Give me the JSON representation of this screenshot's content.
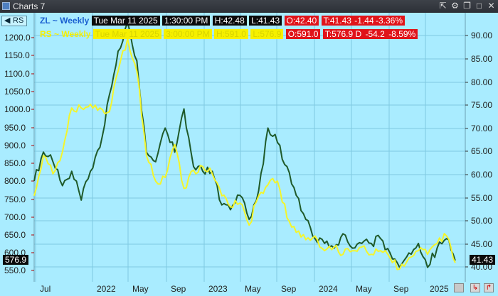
{
  "window": {
    "title": "Charts 7",
    "icons": [
      "export-icon",
      "gear-icon",
      "restore-icon",
      "maximize-icon",
      "close-icon"
    ]
  },
  "toolbar": {
    "instrument_button": "RS"
  },
  "legend": {
    "zl": {
      "symbol": "ZL ~ Weekly",
      "date": "Tue Mar 11 2025",
      "time": "1:30:00 PM",
      "high": "H:42.48",
      "low": "L:41.43",
      "open": "O:42.40",
      "last": "T:41.43",
      "change": "-1.44",
      "pct": "-3.36%"
    },
    "rs": {
      "symbol": "RS ~ Weekly",
      "date": "Tue Mar 11 2025",
      "time": "3:00:00 PM",
      "high": "H:591.0",
      "low": "L:576.9",
      "open": "O:591.0",
      "last": "T:576.9 D",
      "change": "-54.2",
      "pct": "-8.59%"
    }
  },
  "left_axis_ticks": [
    "1200.0",
    "1150.0",
    "1100.0",
    "1050.0",
    "1000.0",
    "950.0",
    "900.0",
    "850.0",
    "800.0",
    "750.0",
    "700.0",
    "650.0",
    "600.0",
    "550.0"
  ],
  "right_axis_ticks": [
    "90.00",
    "85.00",
    "80.00",
    "75.00",
    "70.00",
    "65.00",
    "60.00",
    "55.00",
    "50.00",
    "45.00",
    "40.00"
  ],
  "x_axis_ticks": [
    "Jul",
    "2022",
    "May",
    "Sep",
    "2023",
    "May",
    "Sep",
    "2024",
    "May",
    "Sep",
    "2025"
  ],
  "price_labels": {
    "left": "576.9",
    "right": "41.43"
  },
  "colors": {
    "background": "#a9ecff",
    "zl_line": "#1f5a2a",
    "rs_line": "#f4f52a",
    "grid": "#7ec9e0"
  },
  "chart_data": {
    "type": "line",
    "x_range": [
      "2021-06",
      "2025-03"
    ],
    "series": [
      {
        "name": "ZL ~ Weekly",
        "axis": "right",
        "ylim": [
          37,
          93
        ],
        "x": [
          "2021-06",
          "2021-07",
          "2021-08",
          "2021-09",
          "2021-10",
          "2021-11",
          "2021-12",
          "2022-01",
          "2022-02",
          "2022-03",
          "2022-04",
          "2022-05",
          "2022-06",
          "2022-07",
          "2022-08",
          "2022-09",
          "2022-10",
          "2022-11",
          "2022-12",
          "2023-01",
          "2023-02",
          "2023-03",
          "2023-04",
          "2023-05",
          "2023-06",
          "2023-07",
          "2023-08",
          "2023-09",
          "2023-10",
          "2023-11",
          "2023-12",
          "2024-01",
          "2024-02",
          "2024-03",
          "2024-04",
          "2024-05",
          "2024-06",
          "2024-07",
          "2024-08",
          "2024-09",
          "2024-10",
          "2024-11",
          "2024-12",
          "2025-01",
          "2025-02",
          "2025-03"
        ],
        "values": [
          58,
          64,
          62,
          57,
          60,
          54,
          60,
          65,
          76,
          85,
          91,
          83,
          64,
          62,
          69,
          64,
          73,
          61,
          60,
          60,
          53,
          52,
          55,
          50,
          56,
          69,
          66,
          61,
          55,
          50,
          46,
          45,
          44,
          47,
          44,
          45,
          45,
          46,
          43,
          40,
          43,
          45,
          40,
          44,
          46,
          41.43
        ]
      },
      {
        "name": "RS ~ Weekly",
        "axis": "left",
        "ylim": [
          525,
          1260
        ],
        "x": [
          "2021-06",
          "2021-07",
          "2021-08",
          "2021-09",
          "2021-10",
          "2021-11",
          "2021-12",
          "2022-01",
          "2022-02",
          "2022-03",
          "2022-04",
          "2022-05",
          "2022-06",
          "2022-07",
          "2022-08",
          "2022-09",
          "2022-10",
          "2022-11",
          "2022-12",
          "2023-01",
          "2023-02",
          "2023-03",
          "2023-04",
          "2023-05",
          "2023-06",
          "2023-07",
          "2023-08",
          "2023-09",
          "2023-10",
          "2023-11",
          "2023-12",
          "2024-01",
          "2024-02",
          "2024-03",
          "2024-04",
          "2024-05",
          "2024-06",
          "2024-07",
          "2024-08",
          "2024-09",
          "2024-10",
          "2024-11",
          "2024-12",
          "2025-01",
          "2025-02",
          "2025-03"
        ],
        "values": [
          760,
          870,
          820,
          880,
          1000,
          1000,
          1010,
          1000,
          990,
          1100,
          1190,
          1100,
          870,
          800,
          810,
          900,
          780,
          830,
          840,
          820,
          760,
          730,
          740,
          680,
          760,
          790,
          800,
          700,
          660,
          640,
          650,
          610,
          620,
          600,
          610,
          620,
          600,
          610,
          590,
          560,
          590,
          610,
          600,
          630,
          650,
          576.9
        ]
      }
    ]
  }
}
